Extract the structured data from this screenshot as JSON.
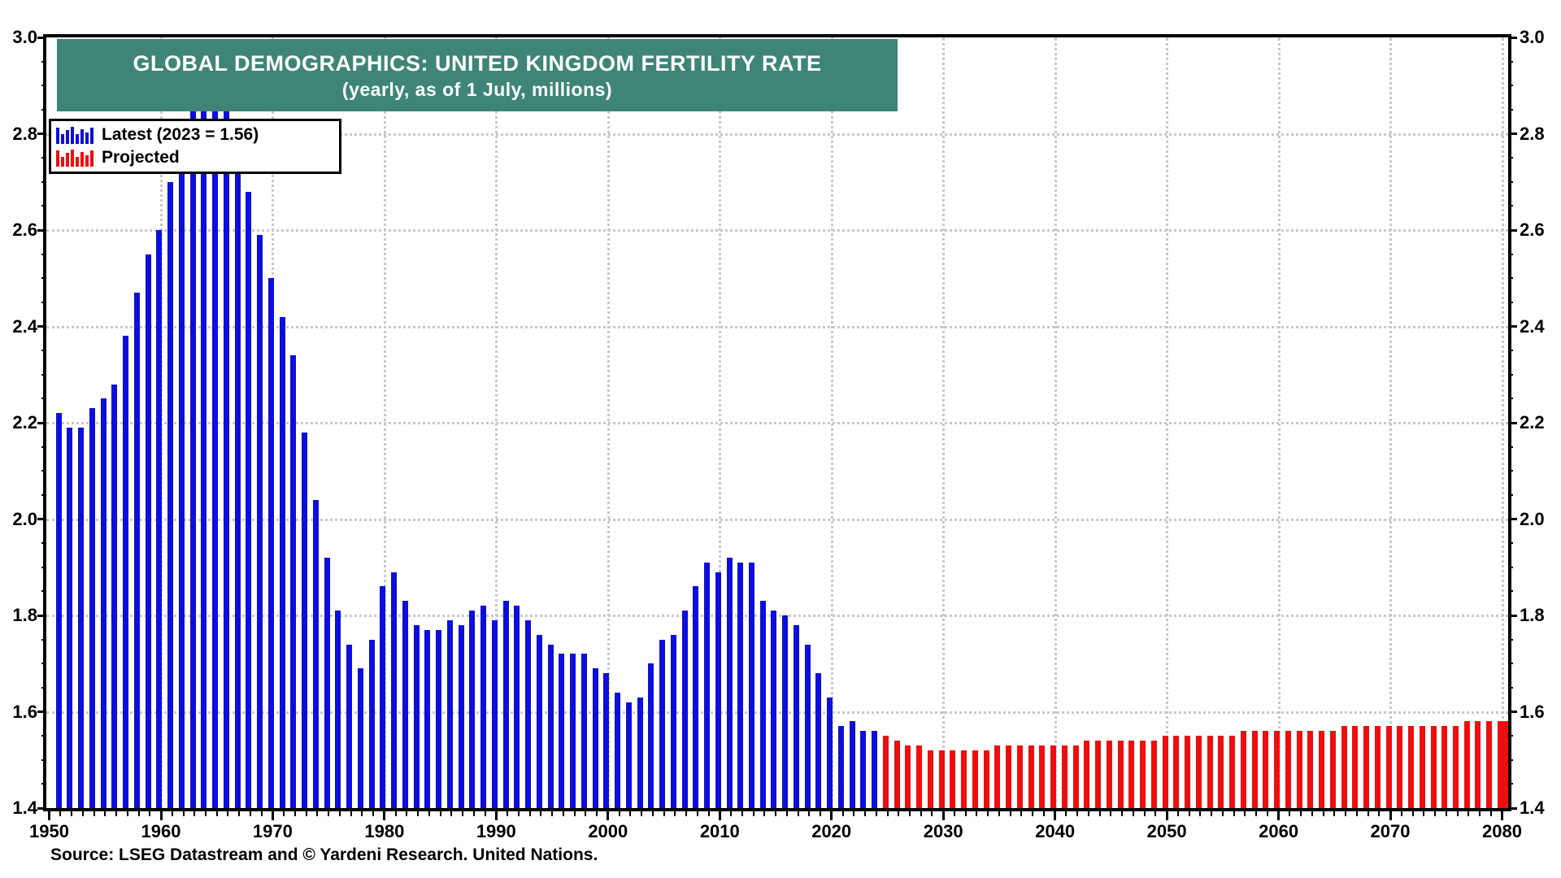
{
  "title": {
    "line1": "GLOBAL DEMOGRAPHICS: UNITED KINGDOM FERTILITY RATE",
    "line2": "(yearly, as of 1 July, millions)"
  },
  "legend": {
    "items": [
      {
        "label": "Latest (2023 = 1.56)",
        "icon": "bar-chart-glyph-blue",
        "color_key": "latest"
      },
      {
        "label": "Projected",
        "icon": "bar-chart-glyph-red",
        "color_key": "projected"
      }
    ]
  },
  "source_note": "Source: LSEG Datastream and © Yardeni Research. United Nations.",
  "colors": {
    "latest": "#0D0EDC",
    "projected": "#EF0E0E",
    "title_bg": "#3E8577",
    "title_text": "#FFFFFF",
    "grid": "#C9C9C9",
    "axis": "#000000"
  },
  "chart_data": {
    "type": "bar",
    "title": "GLOBAL DEMOGRAPHICS: UNITED KINGDOM FERTILITY RATE",
    "subtitle": "(yearly, as of 1 July, millions)",
    "xlabel": "",
    "ylabel": "",
    "xlim": [
      1950,
      2080
    ],
    "ylim": [
      1.4,
      3.0
    ],
    "grid": "dotted",
    "legend_position": "top-left",
    "x_tick_labels": [
      "1950",
      "1960",
      "1970",
      "1980",
      "1990",
      "2000",
      "2010",
      "2020",
      "2030",
      "2040",
      "2050",
      "2060",
      "2070",
      "2080"
    ],
    "y_tick_labels": [
      "1.4",
      "1.6",
      "1.8",
      "2.0",
      "2.2",
      "2.4",
      "2.6",
      "2.8",
      "3.0"
    ],
    "series": [
      {
        "name": "Latest (2023 = 1.56)",
        "color_key": "latest",
        "start_year": 1950,
        "end_year": 2023,
        "values": [
          2.22,
          2.19,
          2.19,
          2.23,
          2.25,
          2.28,
          2.38,
          2.47,
          2.55,
          2.6,
          2.7,
          2.78,
          2.86,
          2.89,
          2.91,
          2.85,
          2.78,
          2.68,
          2.59,
          2.5,
          2.42,
          2.34,
          2.18,
          2.04,
          1.92,
          1.81,
          1.74,
          1.69,
          1.75,
          1.86,
          1.89,
          1.83,
          1.78,
          1.77,
          1.77,
          1.79,
          1.78,
          1.81,
          1.82,
          1.79,
          1.83,
          1.82,
          1.79,
          1.76,
          1.74,
          1.72,
          1.72,
          1.72,
          1.69,
          1.68,
          1.64,
          1.62,
          1.63,
          1.7,
          1.75,
          1.76,
          1.81,
          1.86,
          1.91,
          1.89,
          1.92,
          1.91,
          1.91,
          1.83,
          1.81,
          1.8,
          1.78,
          1.74,
          1.68,
          1.63,
          1.57,
          1.58,
          1.56,
          1.56
        ]
      },
      {
        "name": "Projected",
        "color_key": "projected",
        "start_year": 2024,
        "end_year": 2080,
        "values": [
          1.55,
          1.54,
          1.53,
          1.53,
          1.52,
          1.52,
          1.52,
          1.52,
          1.52,
          1.52,
          1.53,
          1.53,
          1.53,
          1.53,
          1.53,
          1.53,
          1.53,
          1.53,
          1.54,
          1.54,
          1.54,
          1.54,
          1.54,
          1.54,
          1.54,
          1.55,
          1.55,
          1.55,
          1.55,
          1.55,
          1.55,
          1.55,
          1.56,
          1.56,
          1.56,
          1.56,
          1.56,
          1.56,
          1.56,
          1.56,
          1.56,
          1.57,
          1.57,
          1.57,
          1.57,
          1.57,
          1.57,
          1.57,
          1.57,
          1.57,
          1.57,
          1.57,
          1.58,
          1.58,
          1.58,
          1.58,
          1.58
        ]
      }
    ]
  }
}
